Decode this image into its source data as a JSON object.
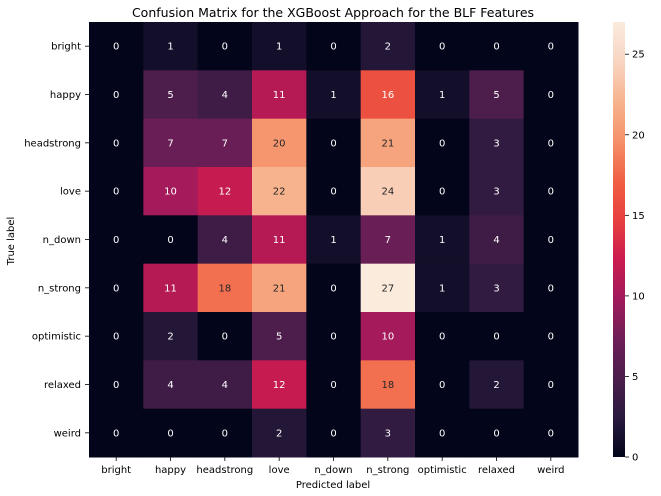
{
  "chart_data": {
    "type": "heatmap",
    "title": "Confusion Matrix for the XGBoost Approach for the BLF Features",
    "xlabel": "Predicted label",
    "ylabel": "True label",
    "x_categories": [
      "bright",
      "happy",
      "headstrong",
      "love",
      "n_down",
      "n_strong",
      "optimistic",
      "relaxed",
      "weird"
    ],
    "y_categories": [
      "bright",
      "happy",
      "headstrong",
      "love",
      "n_down",
      "n_strong",
      "optimistic",
      "relaxed",
      "weird"
    ],
    "values": [
      [
        0,
        1,
        0,
        1,
        0,
        2,
        0,
        0,
        0
      ],
      [
        0,
        5,
        4,
        11,
        1,
        16,
        1,
        5,
        0
      ],
      [
        0,
        7,
        7,
        20,
        0,
        21,
        0,
        3,
        0
      ],
      [
        0,
        10,
        12,
        22,
        0,
        24,
        0,
        3,
        0
      ],
      [
        0,
        0,
        4,
        11,
        1,
        7,
        1,
        4,
        0
      ],
      [
        0,
        11,
        18,
        21,
        0,
        27,
        1,
        3,
        0
      ],
      [
        0,
        2,
        0,
        5,
        0,
        10,
        0,
        0,
        0
      ],
      [
        0,
        4,
        4,
        12,
        0,
        18,
        0,
        2,
        0
      ],
      [
        0,
        0,
        0,
        2,
        0,
        3,
        0,
        0,
        0
      ]
    ],
    "colorbar": {
      "min": 0,
      "max": 27,
      "ticks": [
        0,
        5,
        10,
        15,
        20,
        25
      ],
      "colormap": "rocket",
      "colors": [
        "#03051a",
        "#2a1a3e",
        "#4c1d4b",
        "#6e1f57",
        "#a11a5b",
        "#cb1b4f",
        "#e83f3f",
        "#f06043",
        "#f5916a",
        "#f6b48e",
        "#f8d5c2",
        "#faebdd"
      ]
    }
  }
}
